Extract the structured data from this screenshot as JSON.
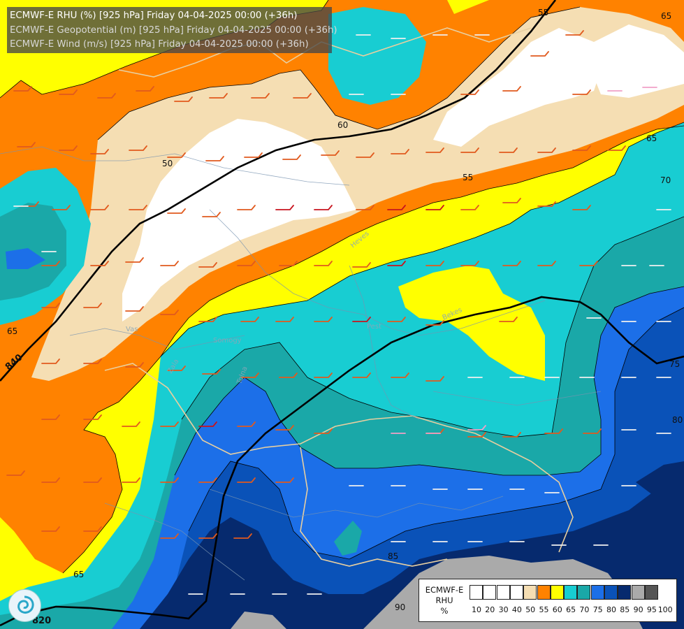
{
  "header": {
    "line1": "ECMWF-E RHU (%) [925 hPa] Friday 04-04-2025 00:00 (+36h)",
    "line2": "ECMWF-E Geopotential (m) [925 hPa] Friday 04-04-2025 00:00 (+36h)",
    "line3": "ECMWF-E Wind (m/s) [925 hPa] Friday 04-04-2025 00:00 (+36h)"
  },
  "legend": {
    "title_lines": [
      "ECMWF-E",
      "RHU",
      "%"
    ],
    "ticks": [
      "10",
      "20",
      "30",
      "40",
      "50",
      "55",
      "60",
      "65",
      "70",
      "75",
      "80",
      "85",
      "90",
      "95",
      "100"
    ],
    "colors": [
      "#ffffff",
      "#ffffff",
      "#ffffff",
      "#ffffff",
      "#f5deb3",
      "#ff8200",
      "#ffff00",
      "#18cdd2",
      "#1aa8a8",
      "#1c6fe8",
      "#0a52b8",
      "#062a6e",
      "#aaaaaa",
      "#555555"
    ]
  },
  "map": {
    "geopotential_labels": [
      "840",
      "820"
    ],
    "rhu_contour_labels": [
      "55",
      "60",
      "50",
      "55",
      "65",
      "70",
      "75",
      "80",
      "85",
      "90",
      "65",
      "65",
      "65"
    ],
    "region_labels": [
      "Vas",
      "Zala",
      "Somogy",
      "Tolna",
      "Bekes",
      "Pest",
      "Heves"
    ],
    "colors": {
      "white": "#ffffff",
      "wheat": "#f5deb3",
      "orange": "#ff8200",
      "yellow": "#ffff00",
      "cyan": "#18cdd2",
      "teal": "#1aa8a8",
      "blue": "#1c6fe8",
      "mid_blue": "#0a52b8",
      "navy": "#062a6e",
      "grey": "#aaaaaa"
    }
  },
  "logo": {
    "icon": "ecmwf-swirl-icon"
  }
}
